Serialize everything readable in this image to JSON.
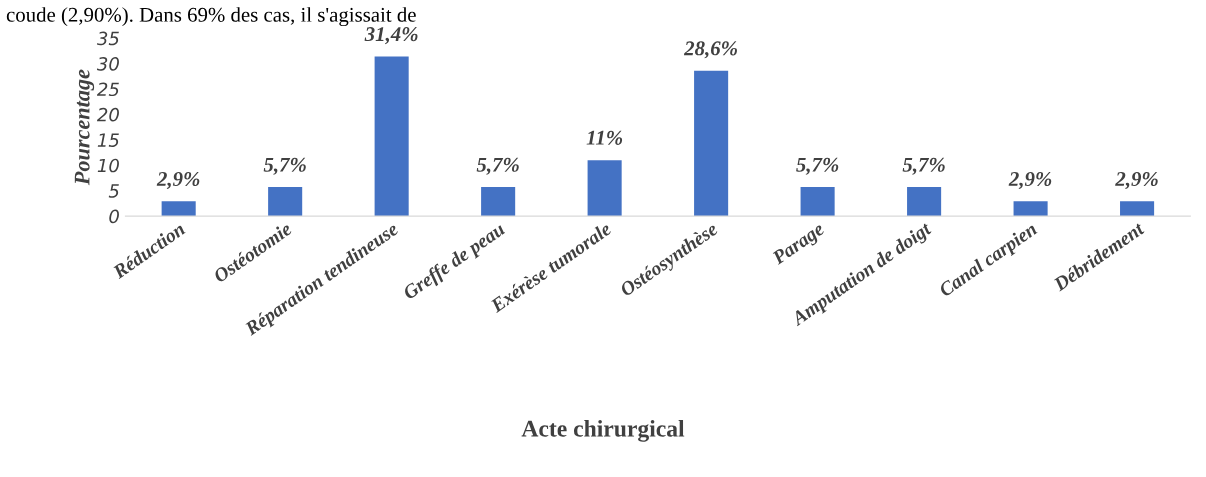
{
  "chart_data": {
    "type": "bar",
    "xlabel": "Acte chirurgical",
    "ylabel": "Pourcentage",
    "categories": [
      "Réduction",
      "Ostéotomie",
      "Réparation tendineuse",
      "Greffe de peau",
      "Exérèse tumorale",
      "Ostéosynthèse",
      "Parage",
      "Amputation de doigt",
      "Canal carpien",
      "Débridement"
    ],
    "values": [
      2.9,
      5.7,
      31.4,
      5.7,
      11,
      28.6,
      5.7,
      5.7,
      2.9,
      2.9
    ],
    "value_labels": [
      "2,9%",
      "5,7%",
      "31,4%",
      "5,7%",
      "11%",
      "28,6%",
      "5,7%",
      "5,7%",
      "2,9%",
      "2,9%"
    ],
    "color": "#4472c4",
    "ylim": [
      0,
      35
    ],
    "yticks": [
      0,
      5,
      10,
      15,
      20,
      25,
      30,
      35
    ],
    "grid": false,
    "annotations": [
      "coude (2,90%). Dans 69% des cas, il s'agissait de"
    ]
  }
}
